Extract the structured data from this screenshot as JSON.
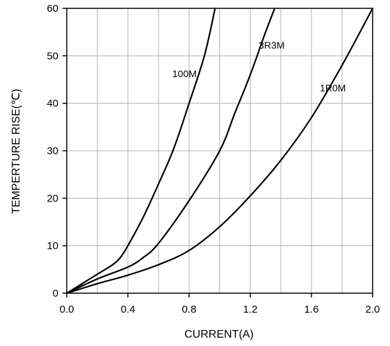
{
  "chart_data": {
    "type": "line",
    "title": "",
    "xlabel": "CURRENT(A)",
    "ylabel": "TEMPERTURE RISE(℃)",
    "xlim": [
      0,
      2.0
    ],
    "ylim": [
      0,
      60
    ],
    "x_tick_labels": [
      "0.0",
      "0.4",
      "0.8",
      "1.2",
      "1.6",
      "2.0"
    ],
    "y_tick_labels": [
      "0",
      "10",
      "20",
      "30",
      "40",
      "50",
      "60"
    ],
    "grid": true,
    "legend": "none",
    "series": [
      {
        "name": "100M",
        "label_at": [
          0.77,
          45.5
        ],
        "points": [
          [
            0,
            0
          ],
          [
            0.1,
            2
          ],
          [
            0.2,
            4
          ],
          [
            0.3,
            6
          ],
          [
            0.35,
            7.5
          ],
          [
            0.4,
            10
          ],
          [
            0.5,
            16
          ],
          [
            0.6,
            23
          ],
          [
            0.7,
            30.5
          ],
          [
            0.8,
            40
          ],
          [
            0.9,
            50
          ],
          [
            0.97,
            60
          ]
        ]
      },
      {
        "name": "3R3M",
        "label_at": [
          1.34,
          51.5
        ],
        "points": [
          [
            0,
            0
          ],
          [
            0.2,
            3
          ],
          [
            0.4,
            5.5
          ],
          [
            0.5,
            7.5
          ],
          [
            0.6,
            10.5
          ],
          [
            0.8,
            19.5
          ],
          [
            1.0,
            30
          ],
          [
            1.1,
            38
          ],
          [
            1.2,
            46
          ],
          [
            1.3,
            55
          ],
          [
            1.36,
            60
          ]
        ]
      },
      {
        "name": "1R0M",
        "label_at": [
          1.74,
          42.5
        ],
        "points": [
          [
            0,
            0
          ],
          [
            0.2,
            2
          ],
          [
            0.4,
            3.8
          ],
          [
            0.6,
            6
          ],
          [
            0.8,
            9
          ],
          [
            1.0,
            14
          ],
          [
            1.2,
            20.5
          ],
          [
            1.4,
            28
          ],
          [
            1.6,
            37
          ],
          [
            1.8,
            48
          ],
          [
            2.0,
            60
          ]
        ]
      }
    ],
    "colors": {
      "line": "#000000",
      "grid": "#b0b0b0",
      "axis": "#000000"
    }
  }
}
